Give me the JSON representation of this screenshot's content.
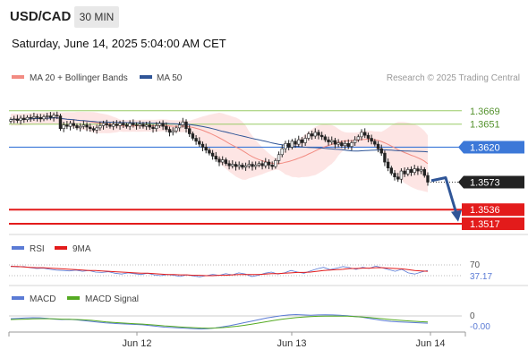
{
  "header": {
    "symbol": "USD/CAD",
    "timeframe": "30 MIN",
    "datetime": "Saturday, June 14, 2025 5:04:00 AM CET"
  },
  "legend": {
    "ma20_label": "MA 20 + Bollinger Bands",
    "ma50_label": "MA 50",
    "credit": "Research © 2025 Trading Central",
    "rsi_label": "RSI",
    "rsi_ma_label": "9MA",
    "macd_label": "MACD",
    "macd_signal_label": "MACD Signal"
  },
  "colors": {
    "ma20": "#f28b82",
    "ma50": "#2f5597",
    "band_fill": "#fde0df",
    "resistance": "#99cc66",
    "pivot": "#3c78d8",
    "support": "#e31b1b",
    "rsi": "#5b7bd5",
    "rsi_ma": "#e31b1b",
    "macd": "#5b7bd5",
    "macd_signal": "#55aa22",
    "arrow": "#2f5597"
  },
  "chart_data": [
    {
      "type": "candlestick",
      "panel": "price",
      "y_range": [
        1.3505,
        1.37
      ],
      "x_labels": [
        "Jun 12",
        "Jun 13",
        "Jun 14"
      ],
      "levels": [
        {
          "label": "1.3669",
          "value": 1.3669,
          "kind": "resistance"
        },
        {
          "label": "1.3651",
          "value": 1.3651,
          "kind": "resistance"
        },
        {
          "label": "1.3620",
          "value": 1.362,
          "kind": "pivot"
        },
        {
          "label": "1.3573",
          "value": 1.3573,
          "kind": "last"
        },
        {
          "label": "1.3536",
          "value": 1.3536,
          "kind": "support"
        },
        {
          "label": "1.3517",
          "value": 1.3517,
          "kind": "support"
        }
      ],
      "forecast_arrow": {
        "from": 1.3575,
        "to": 1.3521
      }
    },
    {
      "type": "line",
      "panel": "rsi",
      "y_range": [
        0,
        100
      ],
      "levels": [
        {
          "label": "70",
          "value": 70
        }
      ],
      "last_value_label": "37.17",
      "series": [
        {
          "name": "RSI",
          "values": [
            48,
            46,
            47,
            44,
            42,
            43,
            40,
            38,
            37,
            36,
            38,
            35,
            37,
            33,
            32,
            34,
            30,
            28,
            31,
            29,
            27,
            30,
            26,
            24,
            27,
            25,
            22,
            26,
            23,
            21,
            24,
            27,
            25,
            29,
            26,
            31,
            28,
            22,
            25,
            30,
            33,
            28,
            31,
            37,
            33,
            30,
            36,
            41,
            45,
            39,
            43,
            47,
            44,
            40,
            45,
            42,
            48,
            44,
            39,
            35,
            40,
            31,
            28,
            33,
            37
          ]
        },
        {
          "name": "9MA",
          "values": [
            47,
            47,
            46,
            45,
            44,
            44,
            43,
            42,
            41,
            40,
            39,
            38,
            37,
            37,
            36,
            35,
            34,
            33,
            32,
            31,
            30,
            30,
            29,
            28,
            27,
            27,
            26,
            26,
            25,
            25,
            24,
            24,
            25,
            25,
            26,
            27,
            27,
            27,
            27,
            28,
            29,
            29,
            30,
            31,
            32,
            32,
            33,
            35,
            37,
            38,
            39,
            40,
            42,
            42,
            43,
            43,
            44,
            44,
            43,
            42,
            41,
            39,
            37,
            36,
            35
          ]
        }
      ]
    },
    {
      "type": "line",
      "panel": "macd",
      "levels": [
        {
          "label": "0",
          "value": 0
        }
      ],
      "last_value_label": "-0.00",
      "series": [
        {
          "name": "MACD",
          "values": [
            -2,
            -1.5,
            -1,
            -0.6,
            -0.8,
            -1.5,
            -2.5,
            -3,
            -2.8,
            -3.5,
            -4.5,
            -5.5,
            -6.5,
            -7.5,
            -8,
            -8.5,
            -9,
            -9.5,
            -10,
            -11,
            -12,
            -13,
            -13.5,
            -14,
            -14.5,
            -15,
            -15.5,
            -15,
            -14,
            -12.5,
            -11,
            -9,
            -7,
            -5,
            -3,
            -1,
            0.5,
            2,
            3,
            3.5,
            3,
            2.5,
            3,
            3.2,
            3,
            2.5,
            2,
            1,
            0,
            -1.5,
            -3,
            -4.5,
            -5.5,
            -6,
            -6.5,
            -7,
            -7.5,
            -7.8
          ]
        },
        {
          "name": "MACD Signal",
          "values": [
            -3,
            -2.8,
            -2.5,
            -2.2,
            -2,
            -2,
            -2.2,
            -2.5,
            -2.8,
            -3,
            -3.5,
            -4,
            -5,
            -6,
            -6.8,
            -7.5,
            -8,
            -8.5,
            -9,
            -9.8,
            -10.5,
            -11.3,
            -12,
            -12.6,
            -13.2,
            -13.7,
            -14.2,
            -14.4,
            -14.2,
            -13.6,
            -12.8,
            -11.8,
            -10.5,
            -9,
            -7.5,
            -5.8,
            -4.2,
            -2.8,
            -1.5,
            -0.5,
            0.3,
            0.8,
            1.2,
            1.5,
            1.6,
            1.5,
            1.3,
            0.9,
            0.4,
            -0.3,
            -1.2,
            -2.2,
            -3.1,
            -3.9,
            -4.6,
            -5.2,
            -5.8,
            -6.3
          ]
        }
      ]
    }
  ]
}
